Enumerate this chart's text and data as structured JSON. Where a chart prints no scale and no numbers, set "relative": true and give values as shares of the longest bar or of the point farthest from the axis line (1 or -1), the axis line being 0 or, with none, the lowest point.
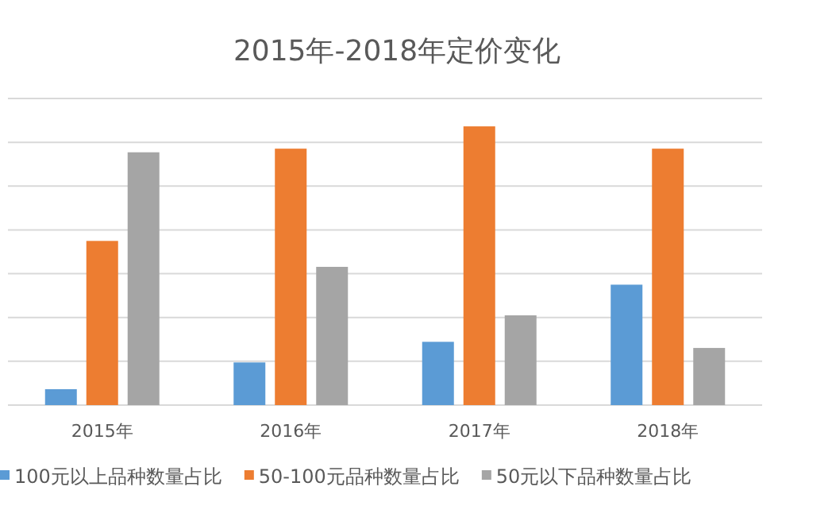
{
  "chart_data": {
    "type": "bar",
    "title": "2015年-2018年定价变化",
    "relative": true,
    "categories": [
      "2015年",
      "2016年",
      "2017年",
      "2018年"
    ],
    "series": [
      {
        "name": "100元以上品种数量占比",
        "color": "#5b9bd5",
        "values": [
          0.057,
          0.153,
          0.227,
          0.432
        ]
      },
      {
        "name": "50-100元品种数量占比",
        "color": "#ed7d31",
        "values": [
          0.589,
          0.92,
          1,
          0.92
        ]
      },
      {
        "name": "50元以下品种数量占比",
        "color": "#a5a5a5",
        "values": [
          0.907,
          0.496,
          0.322,
          0.205
        ]
      }
    ],
    "grid": "y",
    "legend": "bottom"
  }
}
